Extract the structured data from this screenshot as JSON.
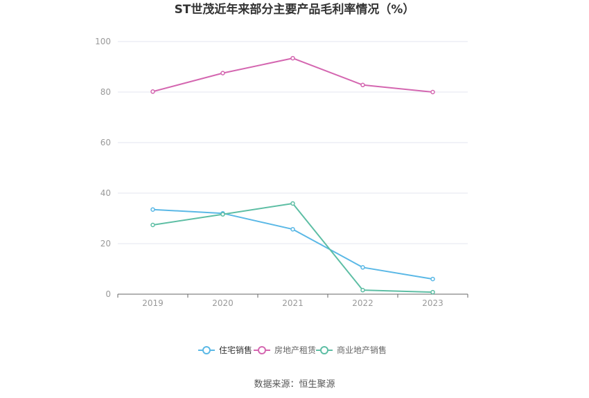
{
  "chart_data": {
    "type": "line",
    "title": "ST世茂近年来部分主要产品毛利率情况（%）",
    "categories": [
      "2019",
      "2020",
      "2021",
      "2022",
      "2023"
    ],
    "ylim": [
      0,
      100
    ],
    "yticks": [
      0,
      20,
      40,
      60,
      80,
      100
    ],
    "grid": true,
    "legend_position": "bottom",
    "series": [
      {
        "name": "住宅销售",
        "color": "#5ab8e6",
        "values": [
          33.5,
          32.0,
          25.7,
          10.6,
          6.0
        ]
      },
      {
        "name": "房地产租赁",
        "color": "#d466b0",
        "values": [
          80.2,
          87.5,
          93.4,
          82.8,
          80.0
        ]
      },
      {
        "name": "商业地产销售",
        "color": "#5dbea4",
        "values": [
          27.4,
          31.6,
          35.9,
          1.6,
          0.8
        ]
      }
    ]
  },
  "source_text": "数据来源：恒生聚源"
}
